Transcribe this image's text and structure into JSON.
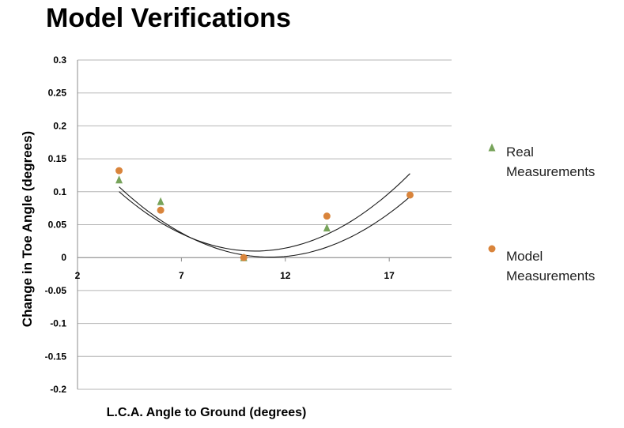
{
  "title": "Model Verifications",
  "chart_data": {
    "type": "scatter",
    "title": "Model Verifications",
    "xlabel": "L.C.A. Angle to Ground (degrees)",
    "ylabel": "Change in Toe Angle (degrees)",
    "xlim": [
      2,
      20
    ],
    "ylim": [
      -0.2,
      0.3
    ],
    "x_ticks": [
      "2",
      "7",
      "12",
      "17"
    ],
    "y_ticks": [
      "0.3",
      "0.25",
      "0.2",
      "0.15",
      "0.1",
      "0.05",
      "0",
      "-0.05",
      "-0.1",
      "-0.15",
      "-0.2"
    ],
    "grid": true,
    "legend_position": "right",
    "series": [
      {
        "name": "Real Measurements",
        "marker": "triangle",
        "color": "#77a35a",
        "points": [
          [
            4,
            0.118
          ],
          [
            6,
            0.085
          ],
          [
            10,
            0.0
          ],
          [
            14,
            0.045
          ]
        ],
        "trendline": {
          "type": "polynomial",
          "coeffs": [
            0.2443,
            -0.0445,
            0.002112
          ],
          "x_range": [
            4,
            18
          ]
        }
      },
      {
        "name": "Model Measurements",
        "marker": "circle",
        "color": "#d9843b",
        "points": [
          [
            4,
            0.132
          ],
          [
            6,
            0.072
          ],
          [
            10,
            0.0
          ],
          [
            14,
            0.063
          ],
          [
            18,
            0.095
          ]
        ],
        "trendline": {
          "type": "polynomial",
          "coeffs": [
            0.2575,
            -0.0456,
            0.002024
          ],
          "x_range": [
            4,
            18
          ]
        }
      }
    ]
  }
}
